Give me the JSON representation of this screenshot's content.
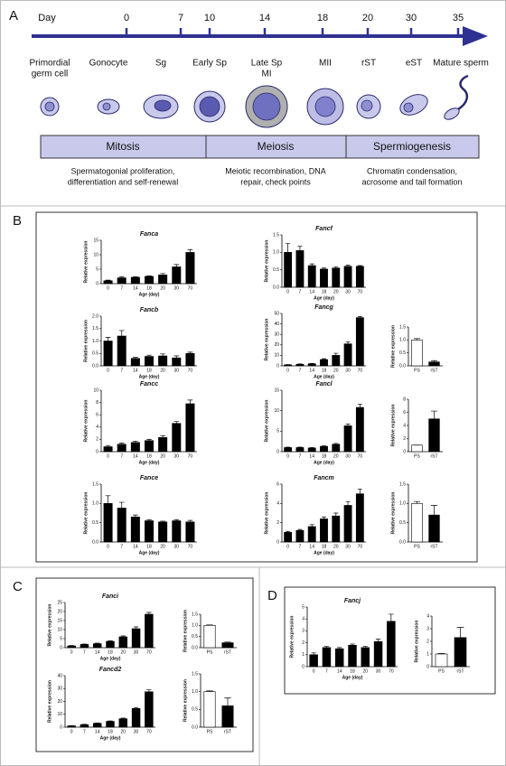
{
  "panels": [
    "A",
    "B",
    "C",
    "D"
  ],
  "timeline": {
    "label": "Day",
    "days": [
      "0",
      "7",
      "10",
      "14",
      "18",
      "20",
      "30",
      "35"
    ]
  },
  "stages": [
    [
      "Primordial",
      "germ cell"
    ],
    [
      "Gonocyte"
    ],
    [
      "Sg"
    ],
    [
      "Early Sp"
    ],
    [
      "Late Sp",
      "MI"
    ],
    [
      "MII"
    ],
    [
      "rST"
    ],
    [
      "eST"
    ],
    [
      "Mature sperm"
    ]
  ],
  "phases": [
    {
      "name": "Mitosis",
      "description": [
        "Spermatogonial proliferation,",
        "differentiation and self-renewal"
      ]
    },
    {
      "name": "Meiosis",
      "description": [
        "Meiotic recombination, DNA",
        "repair, check points"
      ]
    },
    {
      "name": "Spermiogenesis",
      "description": [
        "Chromatin condensation,",
        "acrosome and tail formation"
      ]
    }
  ],
  "chart_data": [
    {
      "type": "bar",
      "title": "Fanca",
      "ylabel": "Relative expression",
      "xlabel": "Age (day)",
      "categories": [
        "0",
        "7",
        "14",
        "18",
        "20",
        "30",
        "70"
      ],
      "values": [
        1,
        2,
        2.2,
        2.5,
        3,
        5.8,
        10.8
      ],
      "errors": [
        0.2,
        0.3,
        0.2,
        0.2,
        0.5,
        0.8,
        1.0
      ],
      "color": "#000000",
      "ylim": [
        0,
        15
      ],
      "yticks": [
        0,
        5,
        10,
        15
      ]
    },
    {
      "type": "bar",
      "title": "Fancf",
      "ylabel": "Relative expression",
      "xlabel": "Age (day)",
      "categories": [
        "0",
        "7",
        "14",
        "18",
        "20",
        "30",
        "70"
      ],
      "values": [
        1.0,
        1.05,
        0.62,
        0.52,
        0.55,
        0.6,
        0.6
      ],
      "errors": [
        0.25,
        0.12,
        0.05,
        0.03,
        0.04,
        0.03,
        0.02
      ],
      "color": "#000000",
      "ylim": [
        0,
        1.5
      ],
      "yticks": [
        {
          "value": 0,
          "label": "0.0"
        },
        0.5,
        {
          "value": 1,
          "label": "1.0"
        },
        1.5
      ]
    },
    {
      "type": "bar",
      "title": "Fancb",
      "ylabel": "Relative expression",
      "xlabel": "Age (day)",
      "categories": [
        "0",
        "7",
        "14",
        "18",
        "20",
        "30",
        "70"
      ],
      "values": [
        1.0,
        1.2,
        0.3,
        0.38,
        0.4,
        0.32,
        0.5
      ],
      "errors": [
        0.15,
        0.22,
        0.04,
        0.05,
        0.08,
        0.08,
        0.05
      ],
      "color": "#000000",
      "ylim": [
        0,
        2
      ],
      "yticks": [
        {
          "value": 0,
          "label": "0.0"
        },
        0.5,
        {
          "value": 1,
          "label": "1.0"
        },
        1.5,
        {
          "value": 2,
          "label": "2.0"
        }
      ]
    },
    {
      "type": "bar",
      "title": "Fancg",
      "ylabel": "Relative expression",
      "xlabel": "Age (day)",
      "categories": [
        "0",
        "7",
        "14",
        "18",
        "20",
        "30",
        "70"
      ],
      "values": [
        1,
        1.5,
        2,
        6,
        10,
        21,
        46
      ],
      "errors": [
        0.2,
        0.3,
        0.3,
        0.8,
        2,
        2,
        1
      ],
      "color": "#000000",
      "ylim": [
        0,
        50
      ],
      "yticks": [
        0,
        10,
        20,
        30,
        40,
        50
      ]
    },
    {
      "type": "bar",
      "ylabel": "Relative expression",
      "categories": [
        "PS",
        "rST"
      ],
      "values": [
        1.0,
        0.15
      ],
      "errors": [
        0.05,
        0.05
      ],
      "colors": [
        "#ffffff",
        "#000000"
      ],
      "ylim": [
        0,
        1.5
      ],
      "yticks": [
        {
          "value": 0,
          "label": "0.0"
        },
        0.5,
        {
          "value": 1,
          "label": "1.0"
        },
        1.5
      ]
    },
    {
      "type": "bar",
      "title": "Fancc",
      "ylabel": "Relative expression",
      "xlabel": "Age (day)",
      "categories": [
        "0",
        "7",
        "14",
        "18",
        "20",
        "30",
        "70"
      ],
      "values": [
        0.8,
        1.2,
        1.5,
        1.8,
        2.3,
        4.6,
        7.8
      ],
      "errors": [
        0.2,
        0.2,
        0.2,
        0.2,
        0.3,
        0.3,
        0.6
      ],
      "color": "#000000",
      "ylim": [
        0,
        10
      ],
      "yticks": [
        0,
        2,
        4,
        6,
        8,
        10
      ]
    },
    {
      "type": "bar",
      "title": "Fancl",
      "ylabel": "Relative expression",
      "xlabel": "Age (day)",
      "categories": [
        "0",
        "7",
        "14",
        "18",
        "20",
        "30",
        "70"
      ],
      "values": [
        1,
        1,
        0.9,
        1.3,
        1.8,
        6.3,
        10.8
      ],
      "errors": [
        0.1,
        0.1,
        0.1,
        0.1,
        0.2,
        0.4,
        0.8
      ],
      "color": "#000000",
      "ylim": [
        0,
        15
      ],
      "yticks": [
        0,
        5,
        10,
        15
      ]
    },
    {
      "type": "bar",
      "ylabel": "Relative expression",
      "categories": [
        "PS",
        "rST"
      ],
      "values": [
        1,
        5
      ],
      "errors": [
        0,
        1.2
      ],
      "colors": [
        "#ffffff",
        "#000000"
      ],
      "ylim": [
        0,
        8
      ],
      "yticks": [
        0,
        2,
        4,
        6,
        8
      ]
    },
    {
      "type": "bar",
      "title": "Fance",
      "ylabel": "Relative expression",
      "xlabel": "Age (day)",
      "categories": [
        "0",
        "7",
        "14",
        "18",
        "20",
        "30",
        "70"
      ],
      "values": [
        1.0,
        0.88,
        0.65,
        0.55,
        0.52,
        0.55,
        0.52
      ],
      "errors": [
        0.2,
        0.15,
        0.05,
        0.03,
        0.02,
        0.03,
        0.04
      ],
      "color": "#000000",
      "ylim": [
        0,
        1.5
      ],
      "yticks": [
        {
          "value": 0,
          "label": "0.0"
        },
        0.5,
        {
          "value": 1,
          "label": "1.0"
        },
        1.5
      ]
    },
    {
      "type": "bar",
      "title": "Fancm",
      "ylabel": "Relative expression",
      "xlabel": "Age (day)",
      "categories": [
        "0",
        "7",
        "14",
        "18",
        "20",
        "30",
        "70"
      ],
      "values": [
        1,
        1.2,
        1.6,
        2.4,
        2.7,
        3.8,
        5.0
      ],
      "errors": [
        0.1,
        0.1,
        0.2,
        0.2,
        0.3,
        0.4,
        0.5
      ],
      "color": "#000000",
      "ylim": [
        0,
        6
      ],
      "yticks": [
        0,
        2,
        4,
        6
      ]
    },
    {
      "type": "bar",
      "ylabel": "Relative expression",
      "categories": [
        "PS",
        "rST"
      ],
      "values": [
        1.0,
        0.7
      ],
      "errors": [
        0.05,
        0.25
      ],
      "colors": [
        "#ffffff",
        "#000000"
      ],
      "ylim": [
        0,
        1.5
      ],
      "yticks": [
        {
          "value": 0,
          "label": "0.0"
        },
        0.5,
        {
          "value": 1,
          "label": "1.0"
        },
        1.5
      ]
    },
    {
      "type": "bar",
      "title": "Fanci",
      "ylabel": "Relative expression",
      "xlabel": "Age (day)",
      "categories": [
        "0",
        "7",
        "14",
        "18",
        "20",
        "30",
        "70"
      ],
      "values": [
        1,
        1.8,
        2.2,
        3.5,
        6,
        10.5,
        18.5
      ],
      "errors": [
        0.2,
        0.2,
        0.3,
        0.3,
        0.5,
        1,
        1
      ],
      "color": "#000000",
      "ylim": [
        0,
        25
      ],
      "yticks": [
        0,
        5,
        10,
        15,
        20,
        25
      ]
    },
    {
      "type": "bar",
      "ylabel": "Relative expression",
      "categories": [
        "PS",
        "rST"
      ],
      "values": [
        1.0,
        0.22
      ],
      "errors": [
        0.02,
        0.03
      ],
      "colors": [
        "#ffffff",
        "#000000"
      ],
      "ylim": [
        0,
        1.5
      ],
      "yticks": [
        {
          "value": 0,
          "label": "0.0"
        },
        0.5,
        {
          "value": 1,
          "label": "1.0"
        },
        1.5
      ]
    },
    {
      "type": "bar",
      "title": "Fancd2",
      "ylabel": "Relative expression",
      "xlabel": "Age (day)",
      "categories": [
        "0",
        "7",
        "14",
        "18",
        "20",
        "30",
        "70"
      ],
      "values": [
        1,
        2,
        3,
        4.5,
        6.5,
        14.5,
        27.5
      ],
      "errors": [
        0.2,
        0.2,
        0.3,
        0.3,
        0.5,
        0.8,
        1.5
      ],
      "color": "#000000",
      "ylim": [
        0,
        40
      ],
      "yticks": [
        0,
        10,
        20,
        30,
        40
      ]
    },
    {
      "type": "bar",
      "ylabel": "Relative expression",
      "categories": [
        "PS",
        "rST"
      ],
      "values": [
        1.0,
        0.6
      ],
      "errors": [
        0.02,
        0.22
      ],
      "colors": [
        "#ffffff",
        "#000000"
      ],
      "ylim": [
        0,
        1.5
      ],
      "yticks": [
        {
          "value": 0,
          "label": "0.0"
        },
        0.5,
        {
          "value": 1,
          "label": "1.0"
        },
        1.5
      ]
    },
    {
      "type": "bar",
      "title": "Fancj",
      "ylabel": "Relative expression",
      "xlabel": "Age (day)",
      "categories": [
        "0",
        "7",
        "14",
        "18",
        "20",
        "30",
        "70"
      ],
      "values": [
        1,
        1.6,
        1.5,
        1.8,
        1.6,
        2.1,
        3.8
      ],
      "errors": [
        0.15,
        0.1,
        0.1,
        0.1,
        0.1,
        0.2,
        0.6
      ],
      "color": "#000000",
      "ylim": [
        0,
        5
      ],
      "yticks": [
        0,
        1,
        2,
        3,
        4,
        5
      ]
    },
    {
      "type": "bar",
      "ylabel": "Relative expression",
      "categories": [
        "PS",
        "rST"
      ],
      "values": [
        1,
        2.3
      ],
      "errors": [
        0.05,
        0.8
      ],
      "colors": [
        "#ffffff",
        "#000000"
      ],
      "ylim": [
        0,
        4
      ],
      "yticks": [
        0,
        1,
        2,
        3,
        4
      ]
    }
  ]
}
